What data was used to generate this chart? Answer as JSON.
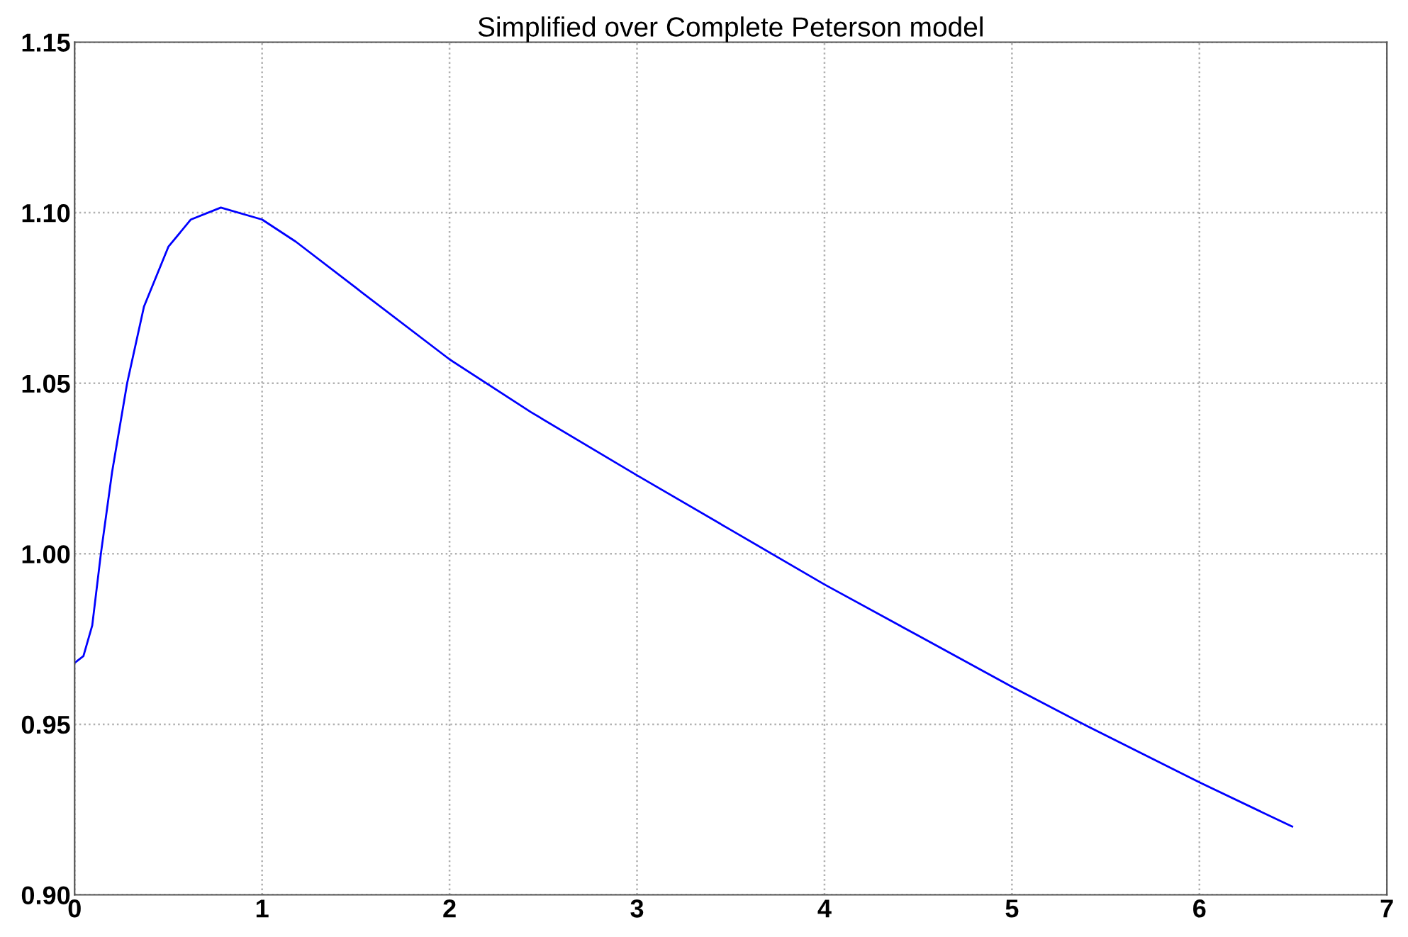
{
  "chart_data": {
    "type": "line",
    "title": "Simplified over Complete Peterson model",
    "series": [
      {
        "color": "#0000ff",
        "x": [
          0,
          0.047,
          0.094,
          0.14,
          0.2,
          0.28,
          0.37,
          0.5,
          0.62,
          0.78,
          1.0,
          1.18,
          1.5,
          2.0,
          2.435,
          3.0,
          3.5,
          4.0,
          4.5,
          5.0,
          5.4,
          6.0,
          6.495
        ],
        "values": [
          0.968,
          0.97,
          0.979,
          1.0,
          1.024,
          1.05,
          1.0725,
          1.09,
          1.098,
          1.1015,
          1.098,
          1.0915,
          1.078,
          1.057,
          1.0415,
          1.023,
          1.007,
          0.991,
          0.976,
          0.961,
          0.9495,
          0.933,
          0.92
        ]
      }
    ],
    "xlim": [
      0,
      7
    ],
    "xticks": [
      0,
      1,
      2,
      3,
      4,
      5,
      6,
      7
    ],
    "ylim": [
      0.9,
      1.15
    ],
    "yticks": [
      {
        "value": 0.9,
        "label": "0.90"
      },
      {
        "value": 0.95,
        "label": "0.95"
      },
      {
        "value": 1.0,
        "label": "1.00"
      },
      {
        "value": 1.05,
        "label": "1.05"
      },
      {
        "value": 1.1,
        "label": "1.10"
      },
      {
        "value": 1.15,
        "label": "1.15"
      }
    ],
    "grid": true,
    "line_style": "solid",
    "marker": "none"
  }
}
